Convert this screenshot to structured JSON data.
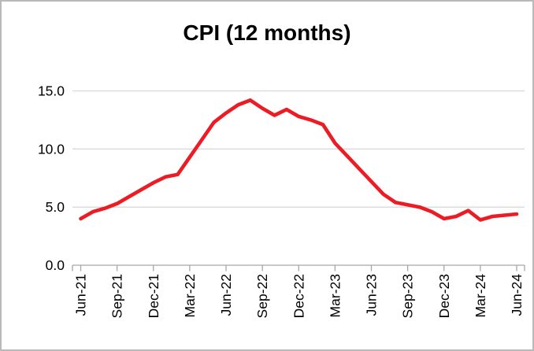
{
  "chart_data": {
    "type": "line",
    "title": "CPI (12 months)",
    "categories": [
      "Jun-21",
      "Jul-21",
      "Aug-21",
      "Sep-21",
      "Oct-21",
      "Nov-21",
      "Dec-21",
      "Jan-22",
      "Feb-22",
      "Mar-22",
      "Apr-22",
      "May-22",
      "Jun-22",
      "Jul-22",
      "Aug-22",
      "Sep-22",
      "Oct-22",
      "Nov-22",
      "Dec-22",
      "Jan-23",
      "Feb-23",
      "Mar-23",
      "Apr-23",
      "May-23",
      "Jun-23",
      "Jul-23",
      "Aug-23",
      "Sep-23",
      "Oct-23",
      "Nov-23",
      "Dec-23",
      "Jan-24",
      "Feb-24",
      "Mar-24",
      "Apr-24",
      "May-24",
      "Jun-24"
    ],
    "series": [
      {
        "name": "CPI (12 months)",
        "color": "#ED1C24",
        "values": [
          4.0,
          4.6,
          4.9,
          5.3,
          5.9,
          6.5,
          7.1,
          7.6,
          7.8,
          9.3,
          10.8,
          12.3,
          13.1,
          13.8,
          14.2,
          13.5,
          12.9,
          13.4,
          12.8,
          12.5,
          12.1,
          10.5,
          9.4,
          8.3,
          7.2,
          6.1,
          5.4,
          5.2,
          5.0,
          4.6,
          4.0,
          4.2,
          4.7,
          3.9,
          4.2,
          4.3,
          4.4
        ]
      }
    ],
    "x_tick_labels": [
      "Jun-21",
      "Sep-21",
      "Dec-21",
      "Mar-22",
      "Jun-22",
      "Sep-22",
      "Dec-22",
      "Mar-23",
      "Jun-23",
      "Sep-23",
      "Dec-23",
      "Mar-24",
      "Jun-24"
    ],
    "x_tick_label_rotation_deg": -90,
    "ylim": [
      0,
      15
    ],
    "yticks": [
      0,
      5,
      10,
      15
    ],
    "ytick_labels": [
      "0.0",
      "5.0",
      "10.0",
      "15.0"
    ],
    "xlabel": "",
    "ylabel": "",
    "grid": "horizontal",
    "legend": "none",
    "gridline_color": "#d9d9d9",
    "axis_color": "#a6a6a6",
    "label_color": "#000000"
  }
}
